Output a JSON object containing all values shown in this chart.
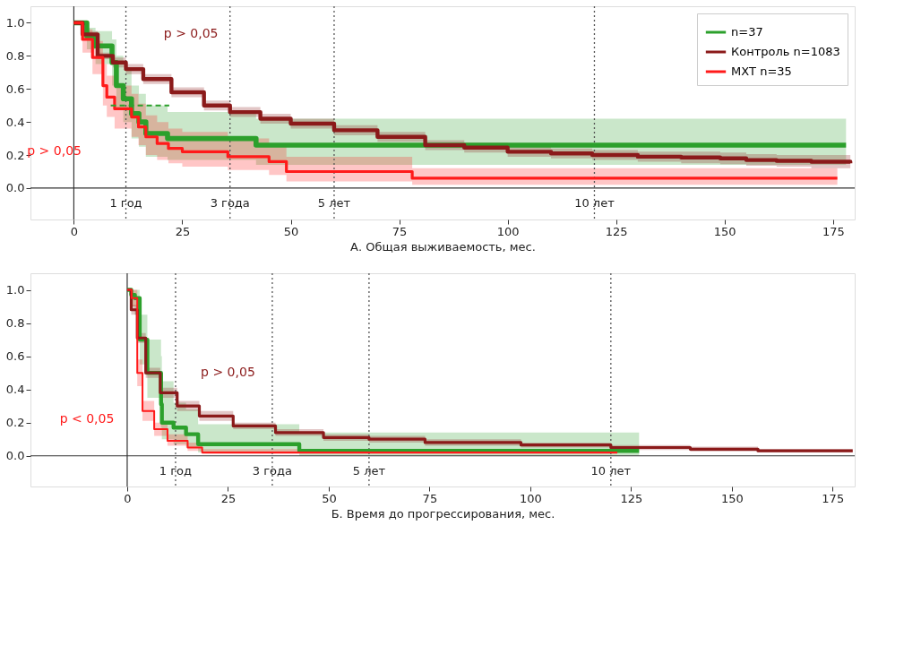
{
  "chart_data": [
    {
      "type": "step",
      "xlabel": "А. Общая выживаемость, мес.",
      "xlim": [
        -10,
        180
      ],
      "xticks": [
        0,
        25,
        50,
        75,
        100,
        125,
        150,
        175
      ],
      "ylim": [
        -0.19,
        1.1
      ],
      "yticks": [
        {
          "value": 0,
          "label": "0.0"
        },
        {
          "value": 0.2,
          "label": "0.2"
        },
        {
          "value": 0.4,
          "label": "0.4"
        },
        {
          "value": 0.6,
          "label": "0.6"
        },
        {
          "value": 0.8,
          "label": "0.8"
        },
        {
          "value": 1,
          "label": "1.0"
        }
      ],
      "legend": "top right",
      "grid": false,
      "annotations": [
        "p > 0,05",
        "p > 0,05"
      ],
      "ref_lines": [
        {
          "axis": "x",
          "value": 0,
          "label": null,
          "line_style": "solid"
        },
        {
          "axis": "y",
          "value": 0,
          "label": null,
          "line_style": "solid"
        },
        {
          "axis": "x",
          "value": 12,
          "label": "1 год",
          "line_style": "dotted"
        },
        {
          "axis": "x",
          "value": 36,
          "label": "3 года",
          "line_style": "dotted"
        },
        {
          "axis": "x",
          "value": 60,
          "label": "5 лет",
          "line_style": "dotted"
        },
        {
          "axis": "x",
          "value": 120,
          "label": "10 лет",
          "line_style": "dotted"
        }
      ],
      "series": [
        {
          "name": "n=37",
          "color": "#2ca02c",
          "x": [
            0,
            3,
            5,
            8.8,
            9.8,
            11.4,
            13.3,
            15,
            16.6,
            21.6,
            42,
            178
          ],
          "values": [
            1,
            0.92,
            0.86,
            0.76,
            0.62,
            0.54,
            0.45,
            0.4,
            0.33,
            0.3,
            0.26,
            0.26
          ],
          "lower": [
            1,
            0.84,
            0.75,
            0.62,
            0.48,
            0.4,
            0.3,
            0.25,
            0.19,
            0.17,
            0.14,
            0.12
          ],
          "upper": [
            1,
            0.97,
            0.95,
            0.9,
            0.8,
            0.72,
            0.62,
            0.57,
            0.5,
            0.46,
            0.42,
            0.42
          ]
        },
        {
          "name": "Контроль n=1083",
          "color": "#8b1a1a",
          "x": [
            0,
            2,
            5.5,
            9,
            12,
            16,
            22.5,
            30,
            36,
            43,
            50,
            60,
            70,
            81,
            90,
            100,
            110,
            119.5,
            130,
            140,
            149,
            155,
            162,
            170,
            179
          ],
          "values": [
            1,
            0.93,
            0.8,
            0.76,
            0.72,
            0.66,
            0.58,
            0.5,
            0.46,
            0.42,
            0.39,
            0.35,
            0.31,
            0.26,
            0.245,
            0.22,
            0.21,
            0.2,
            0.19,
            0.185,
            0.18,
            0.17,
            0.165,
            0.16,
            0.15
          ],
          "lower": [
            1,
            0.91,
            0.78,
            0.73,
            0.69,
            0.63,
            0.55,
            0.47,
            0.43,
            0.39,
            0.36,
            0.32,
            0.28,
            0.23,
            0.215,
            0.19,
            0.18,
            0.17,
            0.16,
            0.15,
            0.145,
            0.135,
            0.13,
            0.12,
            0.11
          ],
          "upper": [
            1,
            0.95,
            0.82,
            0.79,
            0.75,
            0.69,
            0.61,
            0.53,
            0.49,
            0.45,
            0.42,
            0.38,
            0.34,
            0.29,
            0.275,
            0.25,
            0.24,
            0.23,
            0.22,
            0.22,
            0.215,
            0.205,
            0.2,
            0.2,
            0.19
          ]
        },
        {
          "name": "МХТ n=35",
          "color": "#ff1a1a",
          "x": [
            0,
            2,
            4.3,
            6.7,
            7.6,
            9.4,
            13.3,
            14.9,
            16.6,
            19.2,
            21.8,
            25,
            35.5,
            45,
            49,
            77,
            78,
            176
          ],
          "values": [
            1,
            0.9,
            0.79,
            0.62,
            0.55,
            0.48,
            0.43,
            0.37,
            0.31,
            0.27,
            0.24,
            0.22,
            0.19,
            0.16,
            0.1,
            0.1,
            0.06,
            0.06
          ],
          "lower": [
            1,
            0.82,
            0.69,
            0.5,
            0.43,
            0.36,
            0.31,
            0.26,
            0.2,
            0.17,
            0.15,
            0.13,
            0.11,
            0.08,
            0.04,
            0.04,
            0.02,
            0.02
          ],
          "upper": [
            1,
            0.96,
            0.89,
            0.75,
            0.68,
            0.62,
            0.57,
            0.51,
            0.44,
            0.4,
            0.36,
            0.34,
            0.3,
            0.26,
            0.19,
            0.19,
            0.12,
            0.12
          ]
        },
        {
          "type": "line",
          "color": "#2ca02c",
          "line_style": "dashed",
          "x": [
            8.5,
            22
          ],
          "values": [
            0.5,
            0.5
          ]
        }
      ]
    },
    {
      "type": "step",
      "xlabel": "Б. Время до прогрессирования, мес.",
      "xlim": [
        -24,
        180.5
      ],
      "xticks": [
        0,
        25,
        50,
        75,
        100,
        125,
        150,
        175
      ],
      "ylim": [
        -0.185,
        1.1
      ],
      "yticks": [
        {
          "value": 0,
          "label": "0.0"
        },
        {
          "value": 0.2,
          "label": "0.2"
        },
        {
          "value": 0.4,
          "label": "0.4"
        },
        {
          "value": 0.6,
          "label": "0.6"
        },
        {
          "value": 0.8,
          "label": "0.8"
        },
        {
          "value": 1,
          "label": "1.0"
        }
      ],
      "grid": false,
      "annotations": [
        "p > 0,05",
        "p < 0,05"
      ],
      "ref_lines": [
        {
          "axis": "x",
          "value": 0,
          "label": null,
          "line_style": "solid"
        },
        {
          "axis": "y",
          "value": 0,
          "label": null,
          "line_style": "solid"
        },
        {
          "axis": "x",
          "value": 12,
          "label": "1 год",
          "line_style": "dotted"
        },
        {
          "axis": "x",
          "value": 36,
          "label": "3 года",
          "line_style": "dotted"
        },
        {
          "axis": "x",
          "value": 60,
          "label": "5 лет",
          "line_style": "dotted"
        },
        {
          "axis": "x",
          "value": 120,
          "label": "10 лет",
          "line_style": "dotted"
        }
      ],
      "series": [
        {
          "color": "#2ca02c",
          "x": [
            0,
            1,
            1.9,
            3.1,
            5,
            8.4,
            8.6,
            11.5,
            14.6,
            17.6,
            42.7,
            127
          ],
          "values": [
            1,
            0.97,
            0.95,
            0.7,
            0.5,
            0.31,
            0.2,
            0.17,
            0.13,
            0.07,
            0.03,
            0.03
          ],
          "lower": [
            1,
            0.9,
            0.85,
            0.55,
            0.35,
            0.17,
            0.1,
            0.07,
            0.05,
            0.02,
            0,
            0
          ],
          "upper": [
            1,
            1,
            1,
            0.85,
            0.7,
            0.6,
            0.45,
            0.32,
            0.28,
            0.19,
            0.14,
            0.14
          ]
        },
        {
          "color": "#8b1a1a",
          "x": [
            0,
            1,
            2.5,
            4.6,
            8.2,
            12.4,
            17.9,
            26.3,
            36.8,
            48.7,
            60,
            73.9,
            97.7,
            120,
            139.7,
            156.5,
            180
          ],
          "values": [
            1,
            0.88,
            0.71,
            0.5,
            0.38,
            0.3,
            0.24,
            0.18,
            0.14,
            0.11,
            0.1,
            0.08,
            0.065,
            0.05,
            0.04,
            0.03,
            0.03
          ],
          "lower": [
            1,
            0.85,
            0.68,
            0.47,
            0.35,
            0.27,
            0.21,
            0.16,
            0.12,
            0.09,
            0.08,
            0.06,
            0.05,
            0.035,
            0.025,
            0.02,
            0.02
          ],
          "upper": [
            1,
            0.91,
            0.74,
            0.53,
            0.41,
            0.33,
            0.27,
            0.2,
            0.16,
            0.13,
            0.12,
            0.1,
            0.08,
            0.065,
            0.055,
            0.04,
            0.04
          ]
        },
        {
          "color": "#ff1a1a",
          "x": [
            0,
            1.1,
            2.5,
            3.8,
            6.7,
            10,
            15,
            18.6,
            121.6
          ],
          "values": [
            1,
            0.95,
            0.5,
            0.27,
            0.16,
            0.09,
            0.05,
            0.02,
            0.02
          ],
          "lower": [
            1,
            0.9,
            0.42,
            0.21,
            0.12,
            0.06,
            0.03,
            0.01,
            0.01
          ],
          "upper": [
            1,
            1,
            0.58,
            0.33,
            0.2,
            0.13,
            0.08,
            0.04,
            0.04
          ]
        }
      ]
    }
  ]
}
